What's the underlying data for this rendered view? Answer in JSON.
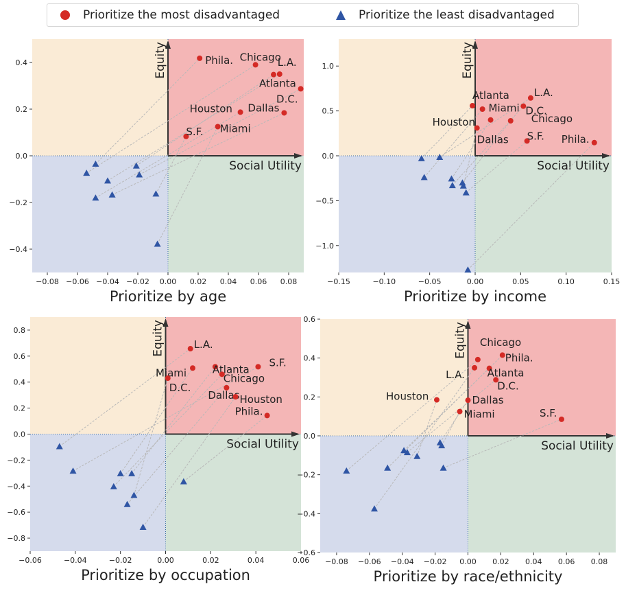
{
  "legend": {
    "most": "Prioritize the most disadvantaged",
    "least": "Prioritize the least disadvantaged"
  },
  "colors": {
    "most": "#d42a25",
    "least": "#2f55a4",
    "q_upper_left": "#faebd6",
    "q_upper_right": "#f4b6b6",
    "q_lower_left": "#d5dbec",
    "q_lower_right": "#d4e3d7",
    "axis": "#333333",
    "connector": "#b8b8b8"
  },
  "chart_data": [
    {
      "type": "scatter",
      "xlabel": "Prioritize by age",
      "x_axis_arrow_label": "Social Utility",
      "y_axis_arrow_label": "Equity",
      "xlim": [
        -0.09,
        0.09
      ],
      "ylim": [
        -0.5,
        0.5
      ],
      "xticks": [
        -0.08,
        -0.06,
        -0.04,
        -0.02,
        0.0,
        0.02,
        0.04,
        0.06,
        0.08
      ],
      "xtick_labels": [
        "−0.08",
        "−0.06",
        "−0.04",
        "−0.02",
        "0.00",
        "0.02",
        "0.04",
        "0.06",
        "0.08"
      ],
      "yticks": [
        -0.4,
        -0.2,
        0.0,
        0.2,
        0.4
      ],
      "ytick_labels": [
        "−0.4",
        "−0.2",
        "0.0",
        "0.2",
        "0.4"
      ],
      "most": [
        {
          "label": "Phila.",
          "x": 0.021,
          "y": 0.418
        },
        {
          "label": "Chicago",
          "x": 0.058,
          "y": 0.39
        },
        {
          "label": "L.A.",
          "x": 0.074,
          "y": 0.35
        },
        {
          "label": "Atlanta",
          "x": 0.07,
          "y": 0.348
        },
        {
          "label": "D.C.",
          "x": 0.088,
          "y": 0.287
        },
        {
          "label": "Houston",
          "x": 0.048,
          "y": 0.187
        },
        {
          "label": "Dallas",
          "x": 0.077,
          "y": 0.184
        },
        {
          "label": "S.F.",
          "x": 0.012,
          "y": 0.083
        },
        {
          "label": "Miami",
          "x": 0.033,
          "y": 0.125
        }
      ],
      "least": [
        {
          "x": -0.048,
          "y": -0.035
        },
        {
          "x": -0.054,
          "y": -0.074
        },
        {
          "x": -0.04,
          "y": -0.107
        },
        {
          "x": -0.021,
          "y": -0.043
        },
        {
          "x": -0.019,
          "y": -0.081
        },
        {
          "x": -0.048,
          "y": -0.18
        },
        {
          "x": -0.037,
          "y": -0.167
        },
        {
          "x": -0.008,
          "y": -0.163
        },
        {
          "x": -0.007,
          "y": -0.378
        }
      ]
    },
    {
      "type": "scatter",
      "xlabel": "Prioritize by income",
      "x_axis_arrow_label": "Social Utility",
      "y_axis_arrow_label": "Equity",
      "xlim": [
        -0.15,
        0.15
      ],
      "ylim": [
        -1.3,
        1.3
      ],
      "xticks": [
        -0.15,
        -0.1,
        -0.05,
        0.0,
        0.05,
        0.1,
        0.15
      ],
      "xtick_labels": [
        "−0.15",
        "−0.10",
        "−0.05",
        "0.00",
        "0.05",
        "0.10",
        "0.15"
      ],
      "yticks": [
        -1.0,
        -0.5,
        0.0,
        0.5,
        1.0
      ],
      "ytick_labels": [
        "−1.0",
        "−0.5",
        "0.0",
        "0.5",
        "1.0"
      ],
      "most": [
        {
          "label": "Atlanta",
          "x": -0.003,
          "y": 0.558
        },
        {
          "label": "L.A.",
          "x": 0.061,
          "y": 0.644
        },
        {
          "label": "Houston",
          "x": 0.008,
          "y": 0.52
        },
        {
          "label": "Miami",
          "x": 0.017,
          "y": 0.4
        },
        {
          "label": "D.C.",
          "x": 0.053,
          "y": 0.553
        },
        {
          "label": "Chicago",
          "x": 0.039,
          "y": 0.39
        },
        {
          "label": "Dallas",
          "x": 0.002,
          "y": 0.31
        },
        {
          "label": "S.F.",
          "x": 0.057,
          "y": 0.165
        },
        {
          "label": "Phila.",
          "x": 0.131,
          "y": 0.147
        }
      ],
      "least": [
        {
          "x": -0.059,
          "y": -0.03
        },
        {
          "x": -0.039,
          "y": -0.015
        },
        {
          "x": -0.056,
          "y": -0.24
        },
        {
          "x": -0.026,
          "y": -0.255
        },
        {
          "x": -0.025,
          "y": -0.33
        },
        {
          "x": -0.014,
          "y": -0.3
        },
        {
          "x": -0.013,
          "y": -0.335
        },
        {
          "x": -0.01,
          "y": -0.41
        },
        {
          "x": -0.008,
          "y": -1.27
        }
      ]
    },
    {
      "type": "scatter",
      "xlabel": "Prioritize by occupation",
      "x_axis_arrow_label": "Social Utility",
      "y_axis_arrow_label": "Equity",
      "xlim": [
        -0.06,
        0.06
      ],
      "ylim": [
        -0.9,
        0.9
      ],
      "xticks": [
        -0.06,
        -0.04,
        -0.02,
        0.0,
        0.02,
        0.04,
        0.06
      ],
      "xtick_labels": [
        "−0.06",
        "−0.04",
        "−0.02",
        "0.00",
        "0.02",
        "0.04",
        "0.06"
      ],
      "yticks": [
        -0.8,
        -0.6,
        -0.4,
        -0.2,
        0.0,
        0.2,
        0.4,
        0.6,
        0.8
      ],
      "ytick_labels": [
        "−0.8",
        "−0.6",
        "−0.4",
        "−0.2",
        "0.0",
        "0.2",
        "0.4",
        "0.6",
        "0.8"
      ],
      "most": [
        {
          "label": "L.A.",
          "x": 0.011,
          "y": 0.657
        },
        {
          "label": "S.F.",
          "x": 0.041,
          "y": 0.518
        },
        {
          "label": "Miami",
          "x": 0.012,
          "y": 0.508
        },
        {
          "label": "Atlanta",
          "x": 0.022,
          "y": 0.518
        },
        {
          "label": "Chicago",
          "x": 0.025,
          "y": 0.46
        },
        {
          "label": "D.C.",
          "x": 0.001,
          "y": 0.43
        },
        {
          "label": "Dallas",
          "x": 0.027,
          "y": 0.357
        },
        {
          "label": "Houston",
          "x": 0.031,
          "y": 0.287
        },
        {
          "label": "Phila.",
          "x": 0.045,
          "y": 0.143
        }
      ],
      "least": [
        {
          "x": -0.047,
          "y": -0.095
        },
        {
          "x": -0.041,
          "y": -0.283
        },
        {
          "x": -0.02,
          "y": -0.303
        },
        {
          "x": -0.015,
          "y": -0.303
        },
        {
          "x": -0.023,
          "y": -0.403
        },
        {
          "x": -0.014,
          "y": -0.47
        },
        {
          "x": -0.017,
          "y": -0.54
        },
        {
          "x": -0.01,
          "y": -0.715
        },
        {
          "x": 0.008,
          "y": -0.365
        }
      ]
    },
    {
      "type": "scatter",
      "xlabel": "Prioritize by race/ethnicity",
      "x_axis_arrow_label": "Social Utility",
      "y_axis_arrow_label": "Equity",
      "xlim": [
        -0.09,
        0.09
      ],
      "ylim": [
        -0.6,
        0.6
      ],
      "xticks": [
        -0.08,
        -0.06,
        -0.04,
        -0.02,
        0.0,
        0.02,
        0.04,
        0.06,
        0.08
      ],
      "xtick_labels": [
        "−0.08",
        "−0.06",
        "−0.04",
        "−0.02",
        "0.00",
        "0.02",
        "0.04",
        "0.06",
        "0.08"
      ],
      "yticks": [
        -0.6,
        -0.4,
        -0.2,
        0.0,
        0.2,
        0.4,
        0.6
      ],
      "ytick_labels": [
        "−0.6",
        "−0.4",
        "−0.2",
        "0.0",
        "0.2",
        "0.4",
        "0.6"
      ],
      "most": [
        {
          "label": "Chicago",
          "x": 0.006,
          "y": 0.392
        },
        {
          "label": "Phila.",
          "x": 0.021,
          "y": 0.415
        },
        {
          "label": "L.A.",
          "x": 0.004,
          "y": 0.35
        },
        {
          "label": "Atlanta",
          "x": 0.013,
          "y": 0.347
        },
        {
          "label": "D.C.",
          "x": 0.017,
          "y": 0.288
        },
        {
          "label": "Houston",
          "x": -0.019,
          "y": 0.185
        },
        {
          "label": "Dallas",
          "x": 0.0,
          "y": 0.183
        },
        {
          "label": "Miami",
          "x": -0.005,
          "y": 0.125
        },
        {
          "label": "S.F.",
          "x": 0.057,
          "y": 0.085
        }
      ],
      "least": [
        {
          "x": -0.074,
          "y": -0.18
        },
        {
          "x": -0.049,
          "y": -0.165
        },
        {
          "x": -0.057,
          "y": -0.375
        },
        {
          "x": -0.039,
          "y": -0.075
        },
        {
          "x": -0.037,
          "y": -0.085
        },
        {
          "x": -0.031,
          "y": -0.105
        },
        {
          "x": -0.017,
          "y": -0.035
        },
        {
          "x": -0.016,
          "y": -0.05
        },
        {
          "x": -0.015,
          "y": -0.165
        }
      ]
    }
  ]
}
